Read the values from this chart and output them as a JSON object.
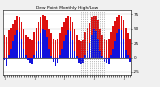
{
  "title": "Dew Point Monthly High/Low",
  "background_color": "#f0f0f0",
  "plot_bg": "#ffffff",
  "high_color": "#dd1111",
  "low_color": "#1111dd",
  "bar_width": 0.8,
  "highs": [
    40,
    35,
    48,
    52,
    58,
    65,
    72,
    70,
    62,
    50,
    40,
    35,
    32,
    30,
    45,
    52,
    62,
    70,
    74,
    72,
    65,
    50,
    42,
    33,
    30,
    32,
    42,
    54,
    62,
    68,
    72,
    70,
    62,
    50,
    40,
    30,
    28,
    30,
    45,
    52,
    60,
    70,
    72,
    72,
    65,
    50,
    40,
    32,
    30,
    32,
    44,
    55,
    63,
    70,
    74,
    72,
    65,
    52,
    42,
    32
  ],
  "lows": [
    -5,
    -15,
    5,
    15,
    28,
    40,
    48,
    45,
    32,
    15,
    5,
    -5,
    -10,
    -12,
    5,
    12,
    28,
    42,
    50,
    48,
    35,
    15,
    3,
    -8,
    -15,
    -10,
    5,
    15,
    28,
    40,
    48,
    46,
    30,
    12,
    2,
    -10,
    -12,
    -10,
    5,
    12,
    26,
    40,
    50,
    46,
    32,
    12,
    3,
    -8,
    -10,
    -12,
    5,
    15,
    28,
    42,
    50,
    48,
    32,
    14,
    4,
    -8
  ],
  "ytick_values": [
    75,
    50,
    25,
    0,
    -25
  ],
  "ytick_labels": [
    "75",
    "50",
    "25",
    "0",
    "-25"
  ],
  "ylim": [
    -30,
    82
  ],
  "xlim": [
    -0.6,
    59.6
  ],
  "dashed_start": 36,
  "dashed_end": 47,
  "xlabel_indices": [
    0,
    4,
    8,
    12,
    14,
    18,
    22,
    24,
    28,
    32,
    36,
    38,
    42,
    46,
    48,
    52,
    56
  ],
  "xlabel_labels": [
    "J",
    "",
    "",
    "",
    "J",
    "",
    "",
    "",
    "J",
    "",
    "",
    "",
    "J",
    "",
    "",
    "",
    "J"
  ]
}
